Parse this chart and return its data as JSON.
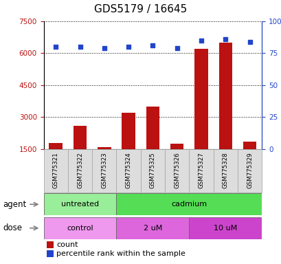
{
  "title": "GDS5179 / 16645",
  "samples": [
    "GSM775321",
    "GSM775322",
    "GSM775323",
    "GSM775324",
    "GSM775325",
    "GSM775326",
    "GSM775327",
    "GSM775328",
    "GSM775329"
  ],
  "counts": [
    1800,
    2600,
    1600,
    3200,
    3500,
    1750,
    6200,
    6500,
    1850
  ],
  "percentile_ranks": [
    80,
    80,
    79,
    80,
    81,
    79,
    85,
    86,
    84
  ],
  "ylim_left": [
    1500,
    7500
  ],
  "ylim_right": [
    0,
    100
  ],
  "yticks_left": [
    1500,
    3000,
    4500,
    6000,
    7500
  ],
  "yticks_right": [
    0,
    25,
    50,
    75,
    100
  ],
  "bar_color": "#bb1111",
  "dot_color": "#2244cc",
  "agent_groups": [
    {
      "label": "untreated",
      "start": 0,
      "end": 3,
      "color": "#99ee99"
    },
    {
      "label": "cadmium",
      "start": 3,
      "end": 9,
      "color": "#55dd55"
    }
  ],
  "dose_groups": [
    {
      "label": "control",
      "start": 0,
      "end": 3,
      "color": "#ee99ee"
    },
    {
      "label": "2 uM",
      "start": 3,
      "end": 6,
      "color": "#dd66dd"
    },
    {
      "label": "10 uM",
      "start": 6,
      "end": 9,
      "color": "#cc44cc"
    }
  ],
  "xlabel_agent": "agent",
  "xlabel_dose": "dose",
  "legend_count_label": "count",
  "legend_pct_label": "percentile rank within the sample",
  "title_fontsize": 11,
  "tick_fontsize": 7.5,
  "label_fontsize": 8.5,
  "sample_box_color": "#dddddd",
  "sample_box_edge": "#aaaaaa"
}
